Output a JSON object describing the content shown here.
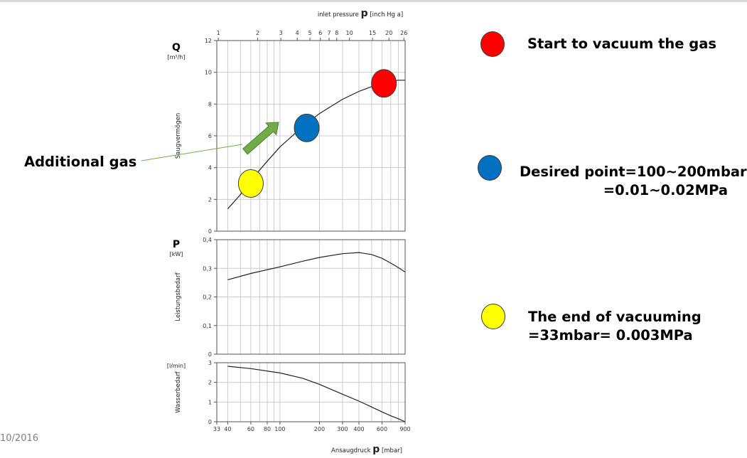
{
  "slide": {
    "footer_text": "10/2016",
    "callout_label": "Additional gas"
  },
  "legend": [
    {
      "color": "#ff0000",
      "icon": "red-circle",
      "lines": [
        "Start to vacuum the gas"
      ]
    },
    {
      "color": "#0070c0",
      "icon": "blue-circle",
      "lines": [
        "Desired point=100~200mbar",
        "=0.01~0.02MPa"
      ]
    },
    {
      "color": "#ffff00",
      "icon": "yellow-circle",
      "lines": [
        "The end of vacuuming",
        "=33mbar= 0.003MPa"
      ]
    }
  ],
  "colors": {
    "curve": "#222222",
    "grid": "#cccccc",
    "frame": "#555555",
    "arrow_fill": "#70ad47",
    "arrow_stroke": "#4e7f31",
    "callout_line": "#70ad47"
  },
  "chart_data": [
    {
      "type": "line",
      "title": "Q",
      "unit": "[m³/h]",
      "ylabel": "Saugvermögen",
      "xscale": "log",
      "xlim": [
        33,
        900
      ],
      "ylim": [
        0,
        12
      ],
      "yticks": [
        0,
        2,
        4,
        6,
        8,
        10,
        12
      ],
      "top_axis": {
        "label": "inlet pressure",
        "symbol": "p",
        "unit": "[inch Hg a]",
        "ticks": [
          {
            "label": "1",
            "mbar": 33.9
          },
          {
            "label": "2",
            "mbar": 67.7
          },
          {
            "label": "3",
            "mbar": 101.6
          },
          {
            "label": "4",
            "mbar": 135.5
          },
          {
            "label": "5",
            "mbar": 169.3
          },
          {
            "label": "6",
            "mbar": 203.2
          },
          {
            "label": "7",
            "mbar": 237
          },
          {
            "label": "8",
            "mbar": 270.9
          },
          {
            "label": "10",
            "mbar": 338.6
          },
          {
            "label": "15",
            "mbar": 508
          },
          {
            "label": "20",
            "mbar": 677.3
          },
          {
            "label": "26",
            "mbar": 880.4
          }
        ]
      },
      "series": [
        {
          "x": [
            40,
            50,
            60,
            80,
            100,
            150,
            200,
            300,
            400,
            500,
            600,
            700,
            800,
            900
          ],
          "y": [
            1.4,
            2.3,
            3.2,
            4.4,
            5.3,
            6.6,
            7.4,
            8.3,
            8.8,
            9.1,
            9.3,
            9.45,
            9.5,
            9.5
          ]
        }
      ],
      "markers": [
        {
          "name": "red",
          "x": 620,
          "y": 9.3,
          "color": "#ff0000"
        },
        {
          "name": "blue",
          "x": 160,
          "y": 6.5,
          "color": "#0070c0"
        },
        {
          "name": "yellow",
          "x": 60,
          "y": 3.0,
          "color": "#ffff00"
        }
      ]
    },
    {
      "type": "line",
      "title": "P",
      "unit": "[kW]",
      "ylabel": "Leistungsbedarf",
      "xscale": "log",
      "xlim": [
        33,
        900
      ],
      "ylim": [
        0,
        0.4
      ],
      "yticks": [
        0,
        0.1,
        0.2,
        0.3,
        0.4
      ],
      "ytick_labels": [
        "0",
        "0,1",
        "0,2",
        "0,3",
        "0,4"
      ],
      "series": [
        {
          "x": [
            40,
            60,
            100,
            150,
            200,
            300,
            400,
            500,
            600,
            700,
            800,
            900
          ],
          "y": [
            0.26,
            0.282,
            0.305,
            0.325,
            0.338,
            0.351,
            0.355,
            0.348,
            0.335,
            0.318,
            0.302,
            0.287
          ]
        }
      ]
    },
    {
      "type": "line",
      "title": "",
      "unit": "[l/min]",
      "ylabel": "Wasserbedarf",
      "xscale": "log",
      "xlim": [
        33,
        900
      ],
      "ylim": [
        0,
        3
      ],
      "yticks": [
        0,
        1,
        2,
        3
      ],
      "xlabel": "Ansaugdruck",
      "xlabel_symbol": "p",
      "xunit": "[mbar]",
      "xticks": [
        33,
        40,
        60,
        80,
        100,
        200,
        300,
        400,
        600,
        900
      ],
      "series": [
        {
          "x": [
            40,
            60,
            100,
            150,
            200,
            300,
            400,
            500,
            600,
            700,
            800,
            900
          ],
          "y": [
            2.82,
            2.7,
            2.48,
            2.2,
            1.9,
            1.4,
            1.05,
            0.75,
            0.5,
            0.3,
            0.15,
            0.0
          ]
        }
      ]
    }
  ]
}
